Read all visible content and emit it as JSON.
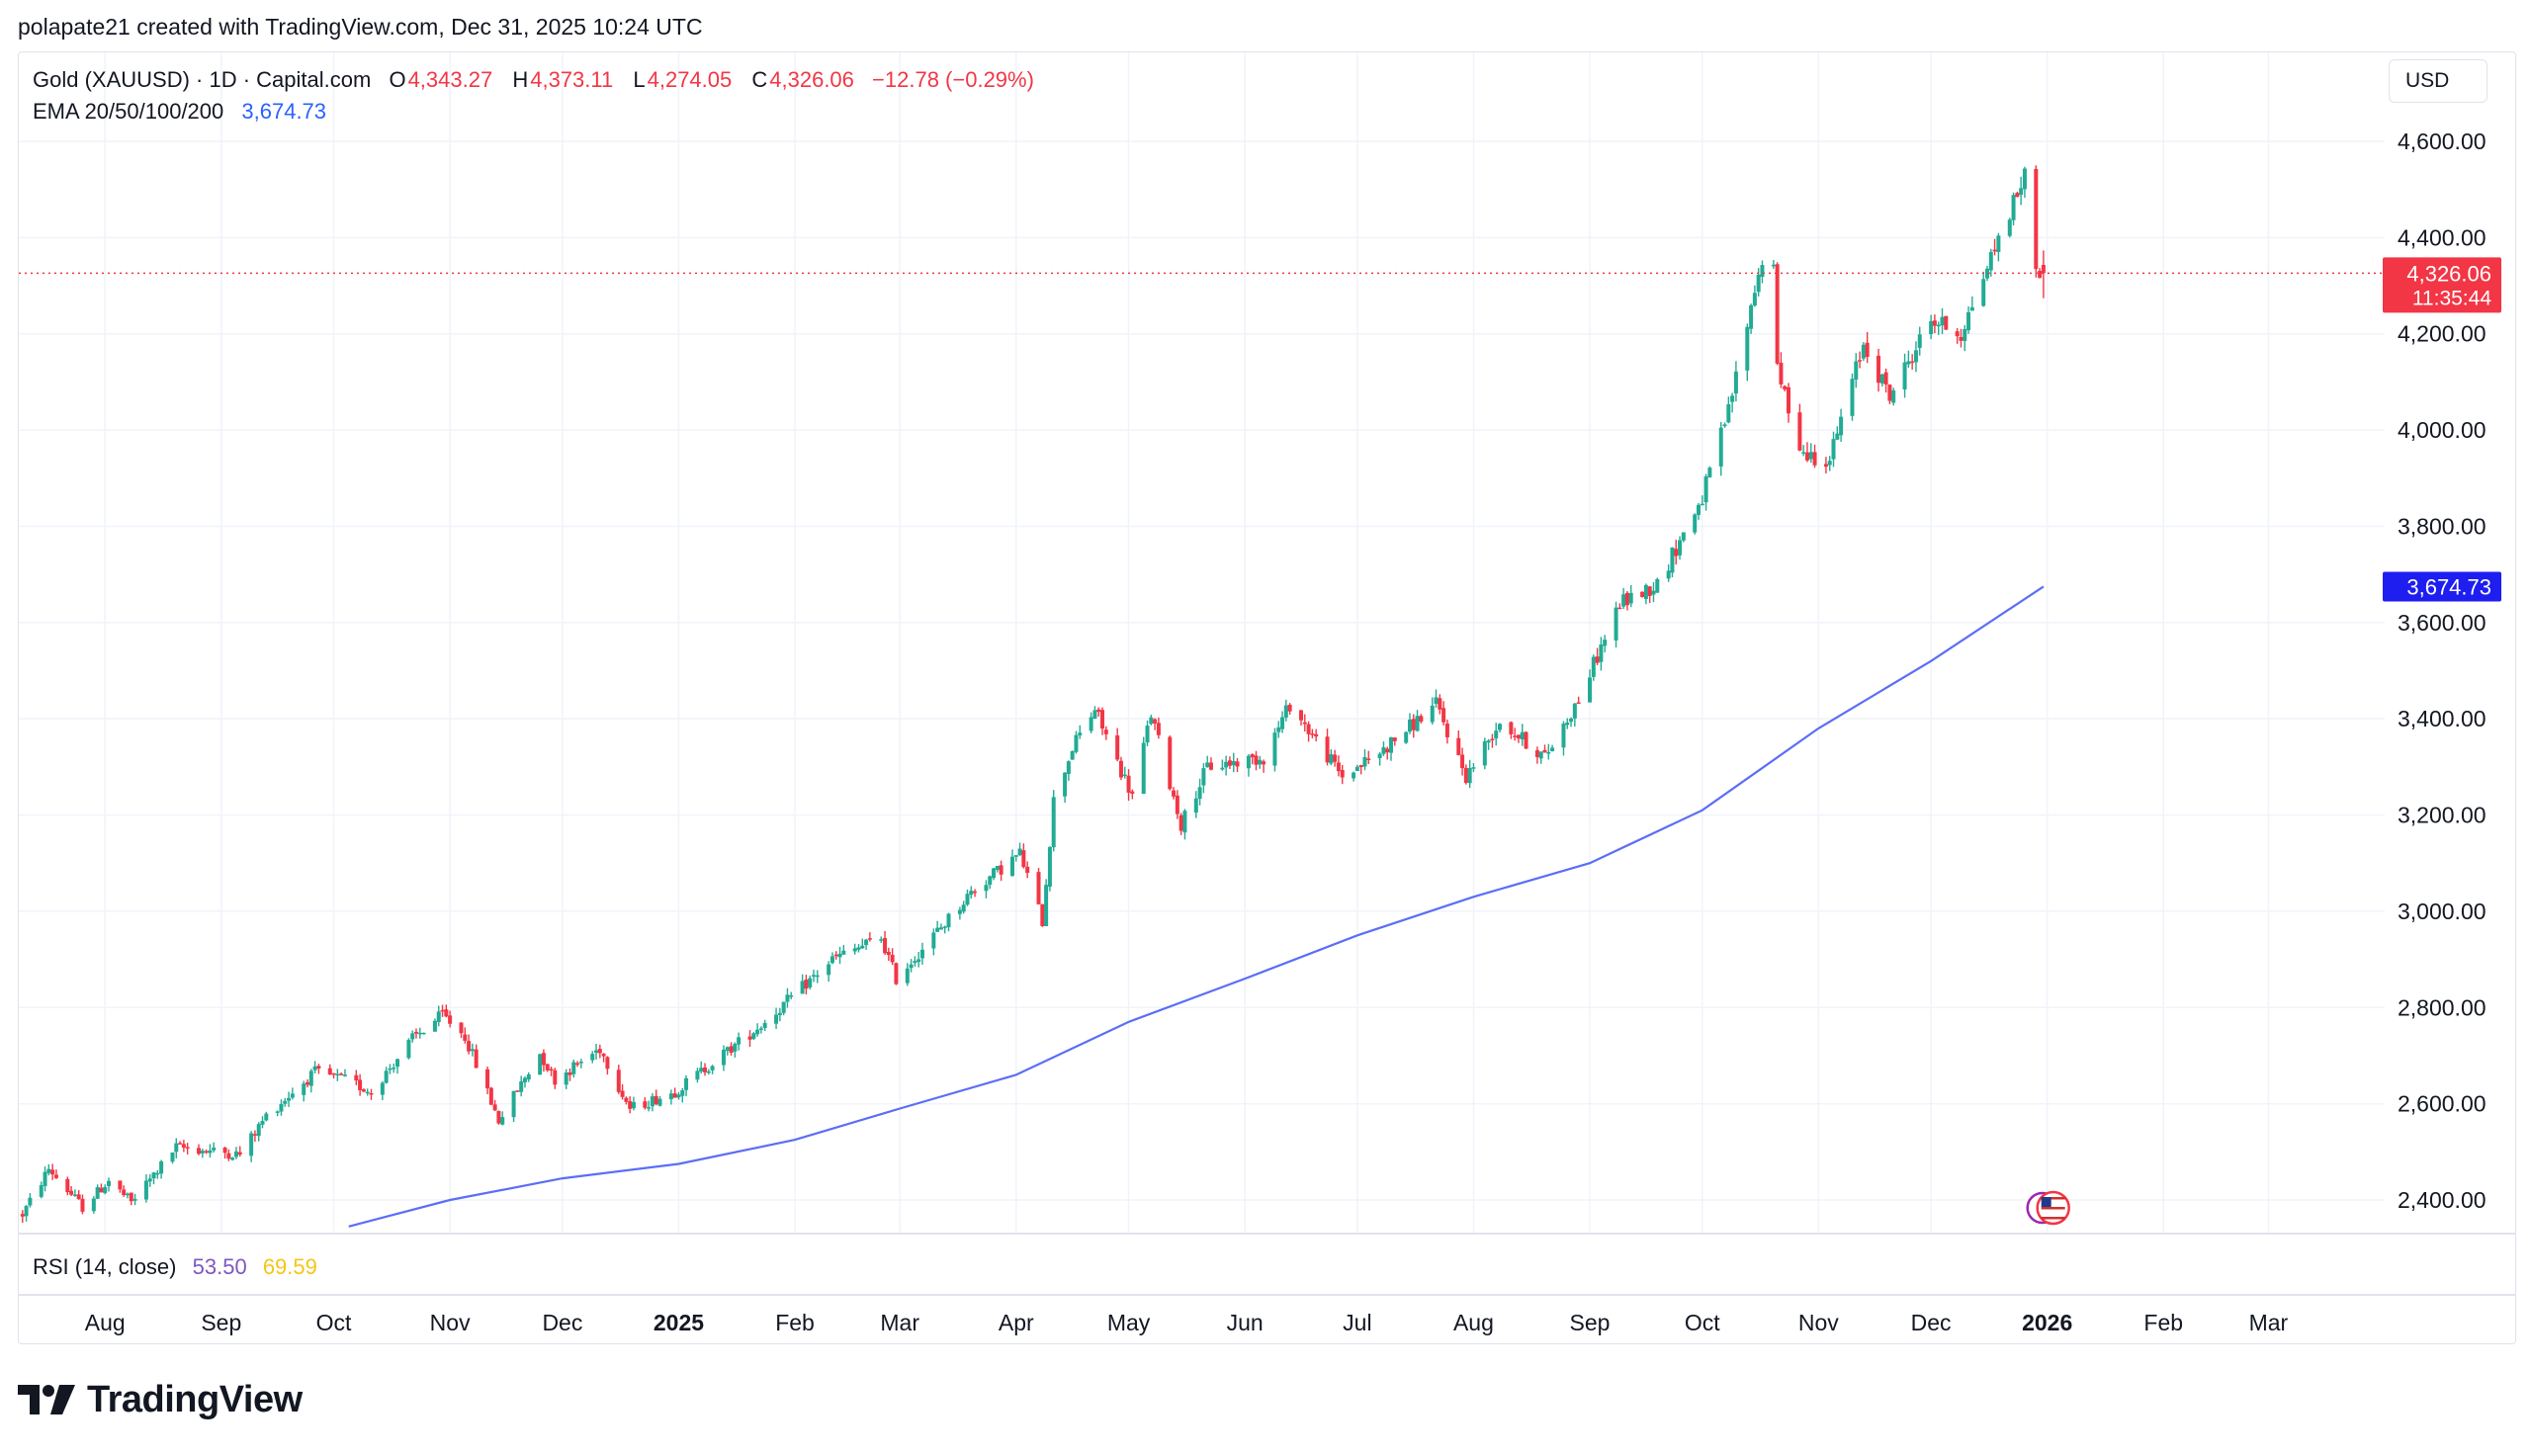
{
  "header": {
    "attribution": "polapate21 created with TradingView.com, Dec 31, 2025 10:24 UTC"
  },
  "legend": {
    "symbol": "Gold (XAUUSD) · 1D · Capital.com",
    "open_label": "O",
    "open": "4,343.27",
    "high_label": "H",
    "high": "4,373.11",
    "low_label": "L",
    "low": "4,274.05",
    "close_label": "C",
    "close": "4,326.06",
    "change": "−12.78 (−0.29%)",
    "ema_label": "EMA 20/50/100/200",
    "ema_value": "3,674.73"
  },
  "currency": "USD",
  "price_tags": {
    "last_price": "4,326.06",
    "countdown": "11:35:44",
    "ema_price": "3,674.73"
  },
  "rsi": {
    "label": "RSI (14, close)",
    "value": "53.50",
    "ma_value": "69.59"
  },
  "branding": {
    "name": "TradingView"
  },
  "colors": {
    "up": "#22ab94",
    "down": "#f23645",
    "ema": "#5b6ef5",
    "ema_tag": "#1e1ef0",
    "last_tag": "#f23645",
    "rsi": "#7e57c2",
    "rsi_ma": "#f5c518"
  },
  "chart_data": {
    "type": "candlestick",
    "title": "Gold (XAUUSD) · 1D · Capital.com",
    "y_axis": {
      "ticks": [
        2400,
        2600,
        2800,
        3000,
        3200,
        3400,
        3600,
        3800,
        4000,
        4200,
        4400,
        4600
      ],
      "tick_labels": [
        "2,400.00",
        "2,600.00",
        "2,800.00",
        "3,000.00",
        "3,200.00",
        "3,400.00",
        "3,600.00",
        "3,800.00",
        "4,000.00",
        "4,200.00",
        "4,400.00",
        "4,600.00"
      ],
      "range": [
        2340,
        4650
      ]
    },
    "x_axis": {
      "labels": [
        "Aug",
        "Sep",
        "Oct",
        "Nov",
        "Dec",
        "2025",
        "Feb",
        "Mar",
        "Apr",
        "May",
        "Jun",
        "Jul",
        "Aug",
        "Sep",
        "Oct",
        "Nov",
        "Dec",
        "2026",
        "Feb",
        "Mar"
      ],
      "bold": [
        "2025",
        "2026"
      ],
      "range": [
        "2024-07-09",
        "2026-04-01"
      ]
    },
    "price_path": [
      [
        "2024-07-10",
        2370
      ],
      [
        "2024-07-17",
        2465
      ],
      [
        "2024-07-26",
        2385
      ],
      [
        "2024-08-02",
        2440
      ],
      [
        "2024-08-08",
        2395
      ],
      [
        "2024-08-20",
        2510
      ],
      [
        "2024-09-06",
        2495
      ],
      [
        "2024-09-13",
        2575
      ],
      [
        "2024-09-26",
        2665
      ],
      [
        "2024-10-04",
        2650
      ],
      [
        "2024-10-11",
        2625
      ],
      [
        "2024-10-22",
        2735
      ],
      [
        "2024-10-30",
        2785
      ],
      [
        "2024-11-05",
        2740
      ],
      [
        "2024-11-14",
        2565
      ],
      [
        "2024-11-25",
        2705
      ],
      [
        "2024-11-29",
        2650
      ],
      [
        "2024-12-11",
        2715
      ],
      [
        "2024-12-19",
        2590
      ],
      [
        "2024-12-31",
        2625
      ],
      [
        "2025-01-24",
        2770
      ],
      [
        "2025-02-11",
        2900
      ],
      [
        "2025-02-24",
        2945
      ],
      [
        "2025-02-28",
        2860
      ],
      [
        "2025-03-14",
        2985
      ],
      [
        "2025-03-20",
        3040
      ],
      [
        "2025-04-02",
        3120
      ],
      [
        "2025-04-08",
        2980
      ],
      [
        "2025-04-11",
        3230
      ],
      [
        "2025-04-16",
        3340
      ],
      [
        "2025-04-22",
        3420
      ],
      [
        "2025-04-28",
        3310
      ],
      [
        "2025-05-02",
        3240
      ],
      [
        "2025-05-07",
        3410
      ],
      [
        "2025-05-15",
        3180
      ],
      [
        "2025-05-22",
        3300
      ],
      [
        "2025-06-06",
        3320
      ],
      [
        "2025-06-13",
        3430
      ],
      [
        "2025-06-27",
        3280
      ],
      [
        "2025-07-07",
        3330
      ],
      [
        "2025-07-22",
        3430
      ],
      [
        "2025-07-30",
        3280
      ],
      [
        "2025-08-08",
        3395
      ],
      [
        "2025-08-20",
        3320
      ],
      [
        "2025-08-29",
        3440
      ],
      [
        "2025-09-09",
        3640
      ],
      [
        "2025-09-19",
        3680
      ],
      [
        "2025-10-01",
        3860
      ],
      [
        "2025-10-08",
        4040
      ],
      [
        "2025-10-16",
        4330
      ],
      [
        "2025-10-20",
        4360
      ],
      [
        "2025-10-21",
        4120
      ],
      [
        "2025-10-28",
        3950
      ],
      [
        "2025-11-04",
        3940
      ],
      [
        "2025-11-13",
        4180
      ],
      [
        "2025-11-20",
        4070
      ],
      [
        "2025-12-01",
        4230
      ],
      [
        "2025-12-09",
        4200
      ],
      [
        "2025-12-16",
        4340
      ],
      [
        "2025-12-26",
        4530
      ],
      [
        "2025-12-27",
        4510
      ],
      [
        "2025-12-29",
        4340
      ],
      [
        "2025-12-31",
        4326
      ]
    ],
    "last_candle": {
      "date": "2025-12-31",
      "open": 4343.27,
      "high": 4373.11,
      "low": 4274.05,
      "close": 4326.06
    },
    "series": [
      {
        "name": "EMA 20/50/100/200",
        "points": [
          [
            "2024-10-05",
            2345
          ],
          [
            "2024-11-01",
            2400
          ],
          [
            "2024-12-01",
            2445
          ],
          [
            "2025-01-01",
            2475
          ],
          [
            "2025-02-01",
            2525
          ],
          [
            "2025-03-01",
            2590
          ],
          [
            "2025-04-01",
            2660
          ],
          [
            "2025-05-01",
            2770
          ],
          [
            "2025-06-01",
            2860
          ],
          [
            "2025-07-01",
            2950
          ],
          [
            "2025-08-01",
            3030
          ],
          [
            "2025-09-01",
            3100
          ],
          [
            "2025-10-01",
            3210
          ],
          [
            "2025-11-01",
            3380
          ],
          [
            "2025-12-01",
            3520
          ],
          [
            "2025-12-31",
            3674.73
          ]
        ]
      }
    ]
  }
}
